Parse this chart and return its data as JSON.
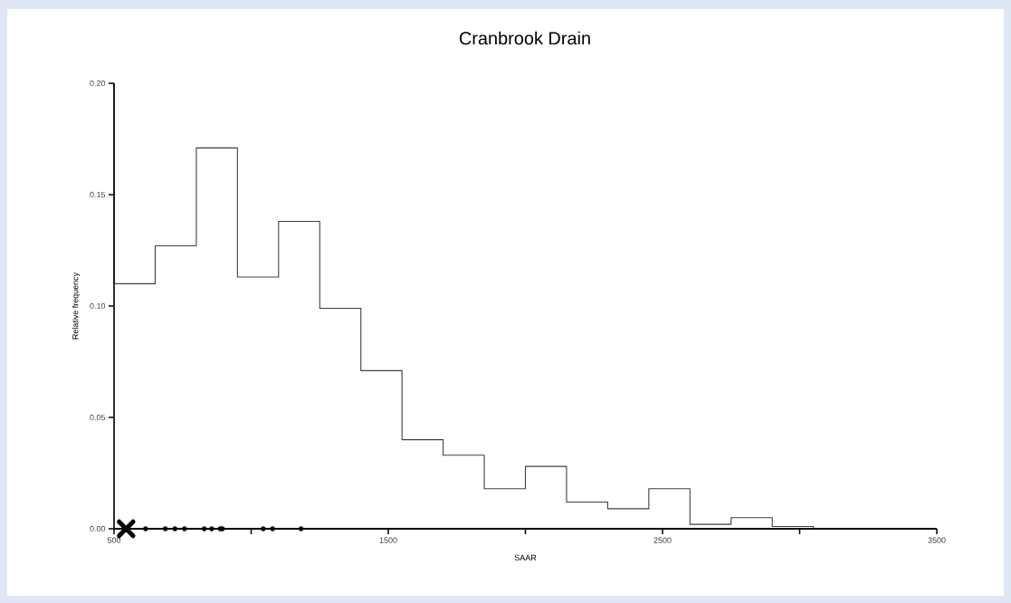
{
  "chart_data": {
    "type": "histogram",
    "title": "Cranbrook Drain",
    "xlabel": "SAAR",
    "ylabel": "Relative frequency",
    "xlim": [
      500,
      3500
    ],
    "ylim": [
      0,
      0.2
    ],
    "xticks": [
      500,
      {
        "value": 1000,
        "label": null
      },
      1500,
      {
        "value": 2000,
        "label": null
      },
      2500,
      {
        "value": 3000,
        "label": null
      },
      3500
    ],
    "yticks": [
      {
        "value": 0,
        "label": "0.00"
      },
      {
        "value": 0.05,
        "label": "0.05"
      },
      {
        "value": 0.1,
        "label": "0.10"
      },
      {
        "value": 0.15,
        "label": "0.15"
      },
      {
        "value": 0.2,
        "label": "0.20"
      }
    ],
    "series": [
      {
        "color": "#404040",
        "bins": [
          500,
          650,
          800,
          950,
          1100,
          1250,
          1400,
          1550,
          1700,
          1850,
          2000,
          2150,
          2300,
          2450,
          2600,
          2750,
          2900,
          3050
        ],
        "values": [
          0.11,
          0.127,
          0.171,
          0.113,
          0.138,
          0.099,
          0.071,
          0.04,
          0.033,
          0.018,
          0.028,
          0.012,
          0.009,
          0.018,
          0.002,
          0.005,
          0.001
        ]
      },
      {
        "type": "scatter",
        "color": "#000000",
        "marker": "circle",
        "x": [
          615,
          687,
          722,
          757,
          829,
          856,
          887,
          895,
          1044,
          1078,
          1182
        ],
        "values": [
          0,
          0,
          0,
          0,
          0,
          0,
          0,
          0,
          0,
          0,
          0
        ]
      },
      {
        "type": "scatter",
        "color": "#000000",
        "marker": "cross",
        "x": [
          544
        ],
        "values": [
          0
        ]
      }
    ]
  }
}
